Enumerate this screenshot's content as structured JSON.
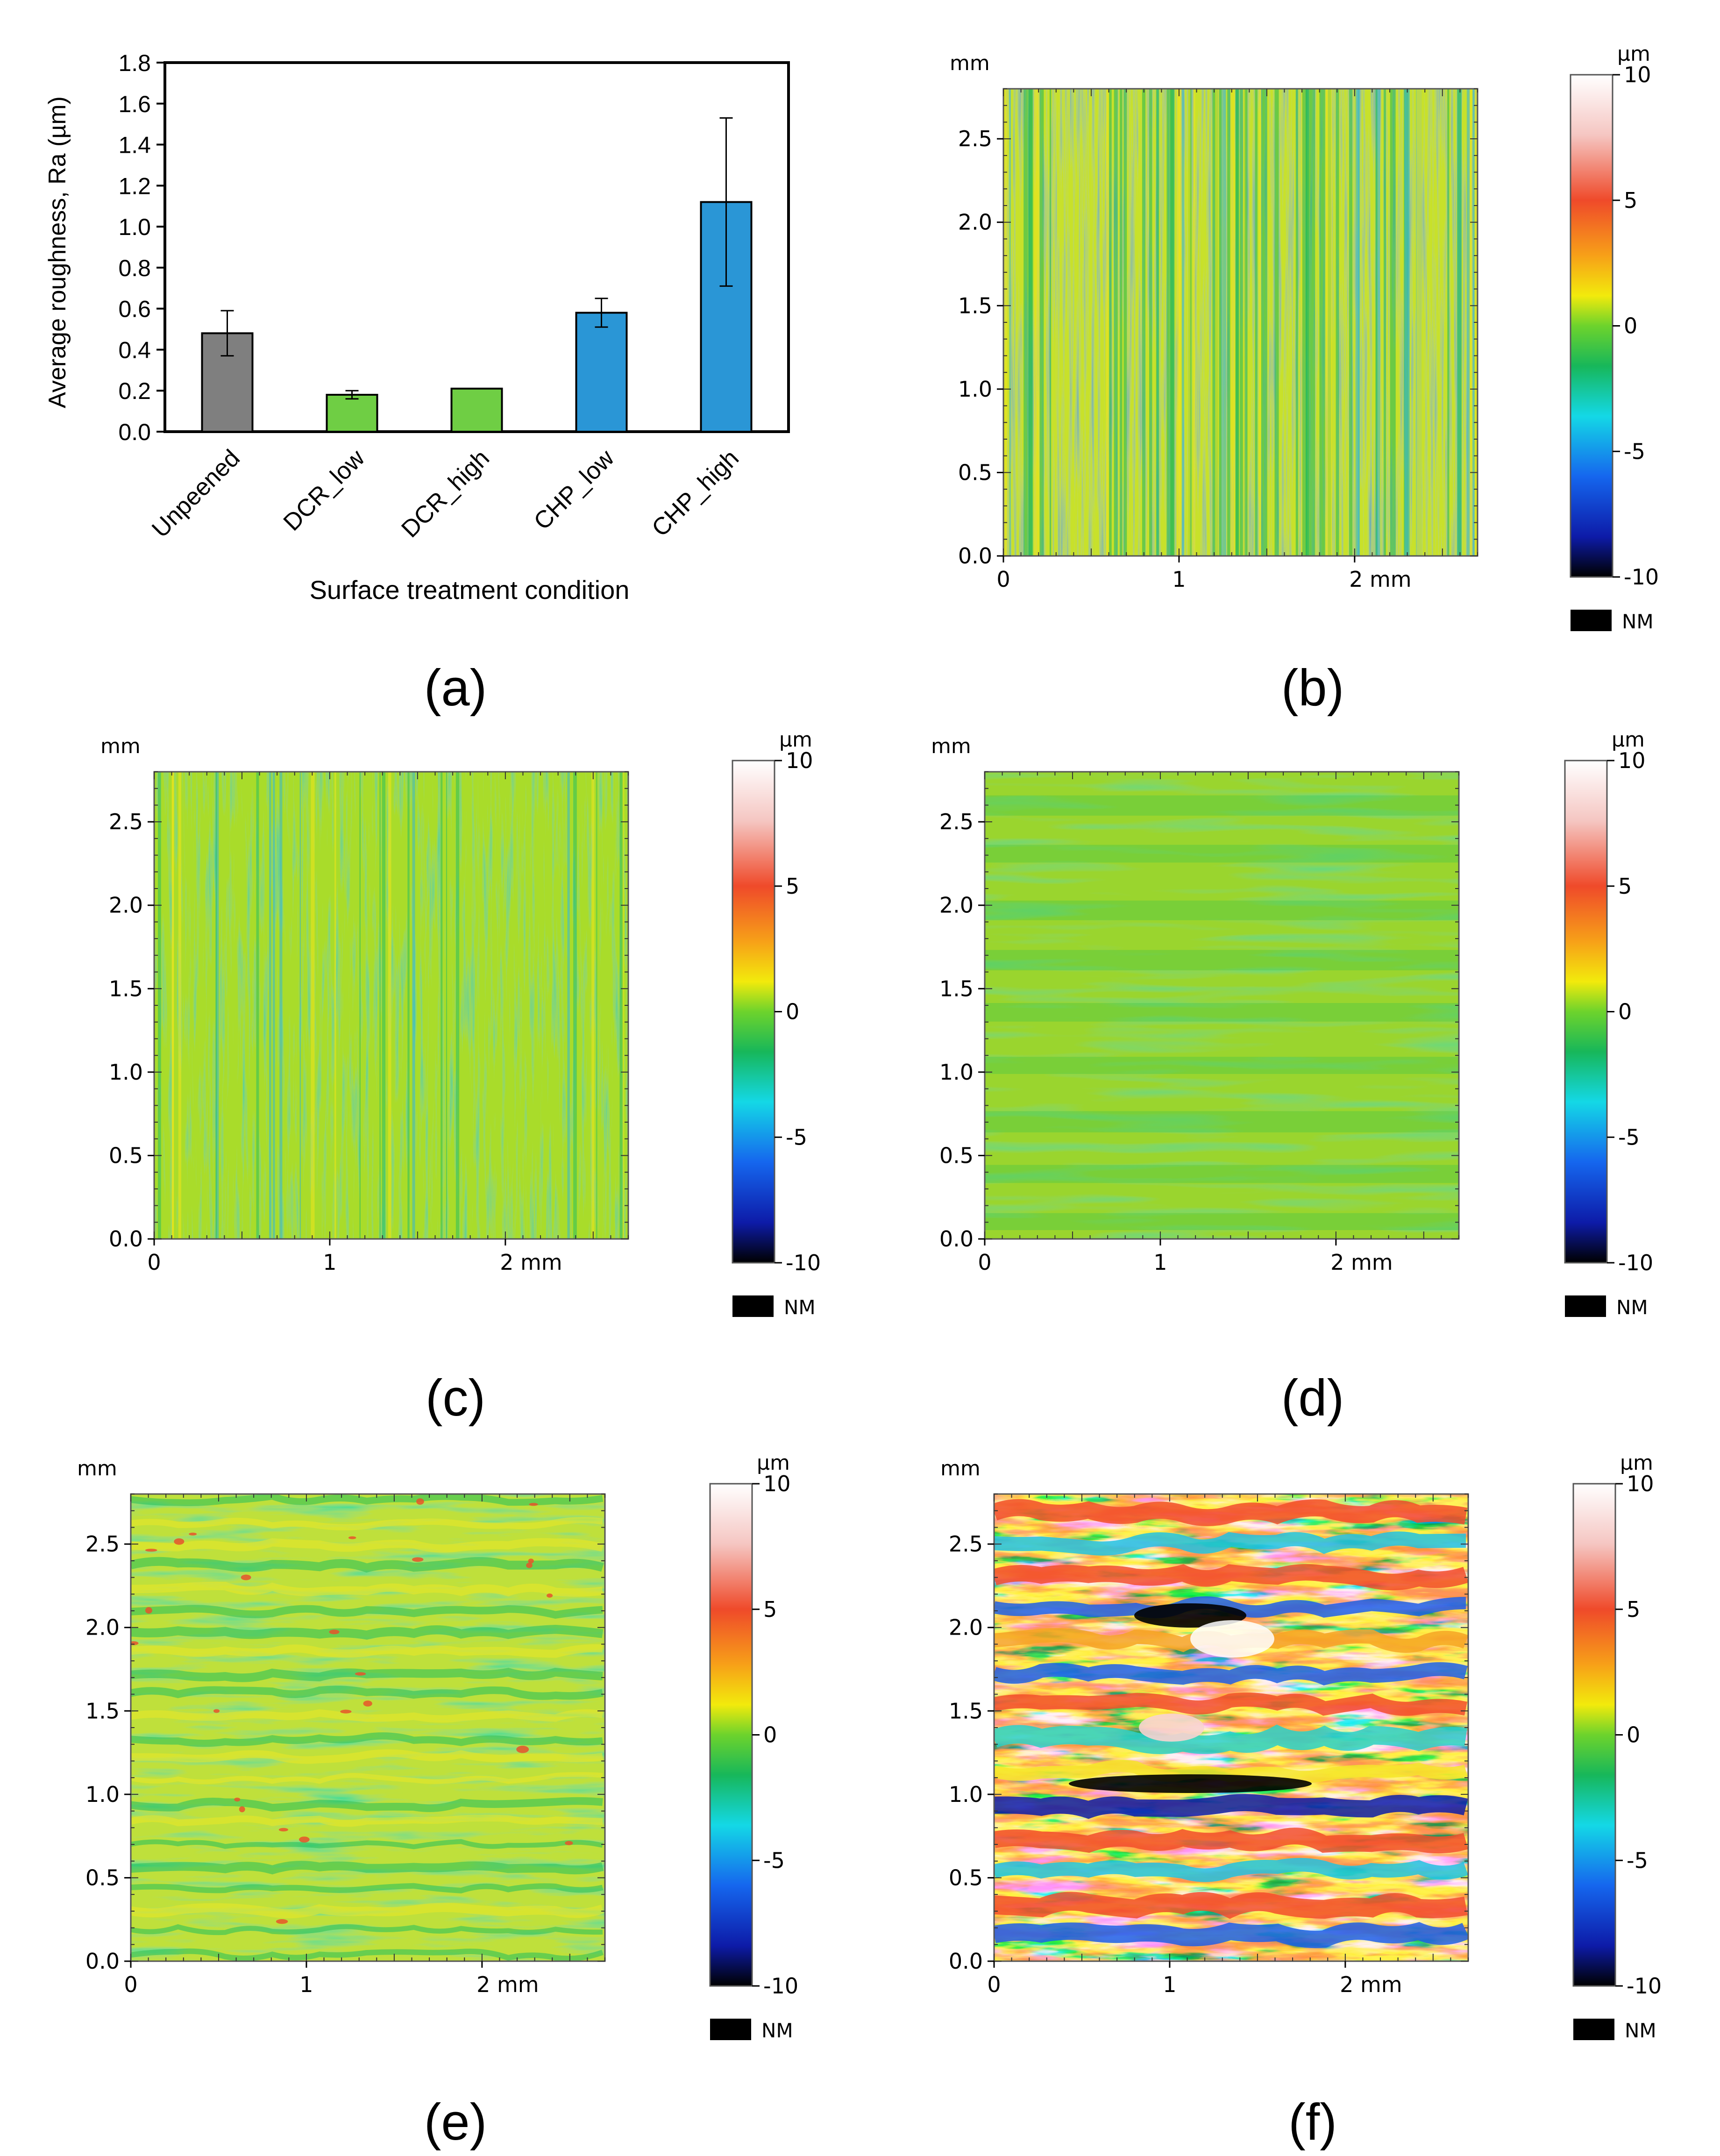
{
  "panel_labels": [
    "(a)",
    "(b)",
    "(c)",
    "(d)",
    "(e)",
    "(f)"
  ],
  "chart_data": [
    {
      "type": "bar",
      "panel": "(a)",
      "title": "",
      "xlabel": "Surface treatment condition",
      "ylabel": "Average roughness, Ra (µm)",
      "categories": [
        "Unpeened",
        "DCR_low",
        "DCR_high",
        "CHP_low",
        "CHP_high"
      ],
      "values": [
        0.48,
        0.18,
        0.21,
        0.58,
        1.12
      ],
      "errors": [
        0.11,
        0.02,
        0.0,
        0.07,
        0.41
      ],
      "colors": [
        "#7f7f7f",
        "#6fce44",
        "#6fce44",
        "#2a96d6",
        "#2a96d6"
      ],
      "ylim": [
        0,
        1.8
      ],
      "yticks": [
        "0.0",
        "0.2",
        "0.4",
        "0.6",
        "0.8",
        "1.0",
        "1.2",
        "1.4",
        "1.6",
        "1.8"
      ]
    },
    {
      "type": "heatmap",
      "panel": "(b)",
      "pattern": "vertical",
      "x_unit": "mm",
      "y_unit": "mm",
      "xticks": [
        "0",
        "1",
        "2 mm"
      ],
      "yticks": [
        "0.0",
        "0.5",
        "1.0",
        "1.5",
        "2.0",
        "2.5"
      ],
      "colorbar": {
        "unit": "µm",
        "ticks": [
          "10",
          "5",
          "0",
          "-5",
          "-10"
        ],
        "range": [
          -10,
          10
        ],
        "nm_label": "NM"
      }
    },
    {
      "type": "heatmap",
      "panel": "(c)",
      "pattern": "vertical-smooth",
      "x_unit": "mm",
      "y_unit": "mm",
      "xticks": [
        "0",
        "1",
        "2 mm"
      ],
      "yticks": [
        "0.0",
        "0.5",
        "1.0",
        "1.5",
        "2.0",
        "2.5"
      ],
      "colorbar": {
        "unit": "µm",
        "ticks": [
          "10",
          "5",
          "0",
          "-5",
          "-10"
        ],
        "range": [
          -10,
          10
        ],
        "nm_label": "NM"
      }
    },
    {
      "type": "heatmap",
      "panel": "(d)",
      "pattern": "horizontal-smooth",
      "x_unit": "mm",
      "y_unit": "mm",
      "xticks": [
        "0",
        "1",
        "2 mm"
      ],
      "yticks": [
        "0.0",
        "0.5",
        "1.0",
        "1.5",
        "2.0",
        "2.5"
      ],
      "colorbar": {
        "unit": "µm",
        "ticks": [
          "10",
          "5",
          "0",
          "-5",
          "-10"
        ],
        "range": [
          -10,
          10
        ],
        "nm_label": "NM"
      }
    },
    {
      "type": "heatmap",
      "panel": "(e)",
      "pattern": "horizontal-wavy",
      "x_unit": "mm",
      "y_unit": "mm",
      "xticks": [
        "0",
        "1",
        "2 mm"
      ],
      "yticks": [
        "0.0",
        "0.5",
        "1.0",
        "1.5",
        "2.0",
        "2.5"
      ],
      "colorbar": {
        "unit": "µm",
        "ticks": [
          "10",
          "5",
          "0",
          "-5",
          "-10"
        ],
        "range": [
          -10,
          10
        ],
        "nm_label": "NM"
      }
    },
    {
      "type": "heatmap",
      "panel": "(f)",
      "pattern": "horizontal-rough",
      "x_unit": "mm",
      "y_unit": "mm",
      "xticks": [
        "0",
        "1",
        "2 mm"
      ],
      "yticks": [
        "0.0",
        "0.5",
        "1.0",
        "1.5",
        "2.0",
        "2.5"
      ],
      "colorbar": {
        "unit": "µm",
        "ticks": [
          "10",
          "5",
          "0",
          "-5",
          "-10"
        ],
        "range": [
          -10,
          10
        ],
        "nm_label": "NM"
      }
    }
  ]
}
